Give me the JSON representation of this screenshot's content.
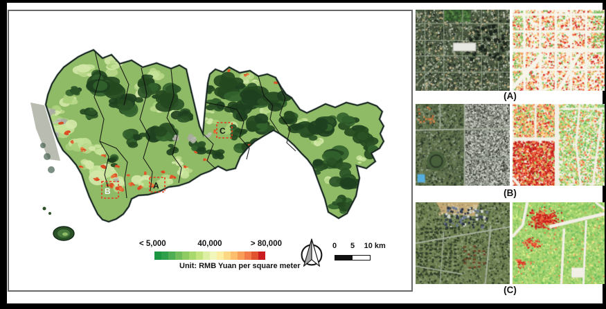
{
  "map": {
    "legend": {
      "min_label": "< 5,000",
      "mid_label": "40,000",
      "max_label": "> 80,000",
      "unit_label": "Unit: RMB Yuan per square meter",
      "color_ramp": [
        "#1a9641",
        "#2ea04c",
        "#4fae53",
        "#71bd5b",
        "#8ecb63",
        "#a9d86c",
        "#c4e47f",
        "#ddefa2",
        "#f0f6bc",
        "#fdeda0",
        "#fdd884",
        "#fdbe6e",
        "#f99e59",
        "#f37b4a",
        "#e1532f",
        "#ca1d20"
      ]
    },
    "scale_bar": {
      "tick_0": "0",
      "tick_5": "5",
      "tick_10": "10 km"
    },
    "insets": {
      "a": "A",
      "b": "B",
      "c": "C"
    }
  },
  "panels": {
    "a": {
      "label": "(A)"
    },
    "b": {
      "label": "(B)"
    },
    "c": {
      "label": "(C)"
    }
  }
}
